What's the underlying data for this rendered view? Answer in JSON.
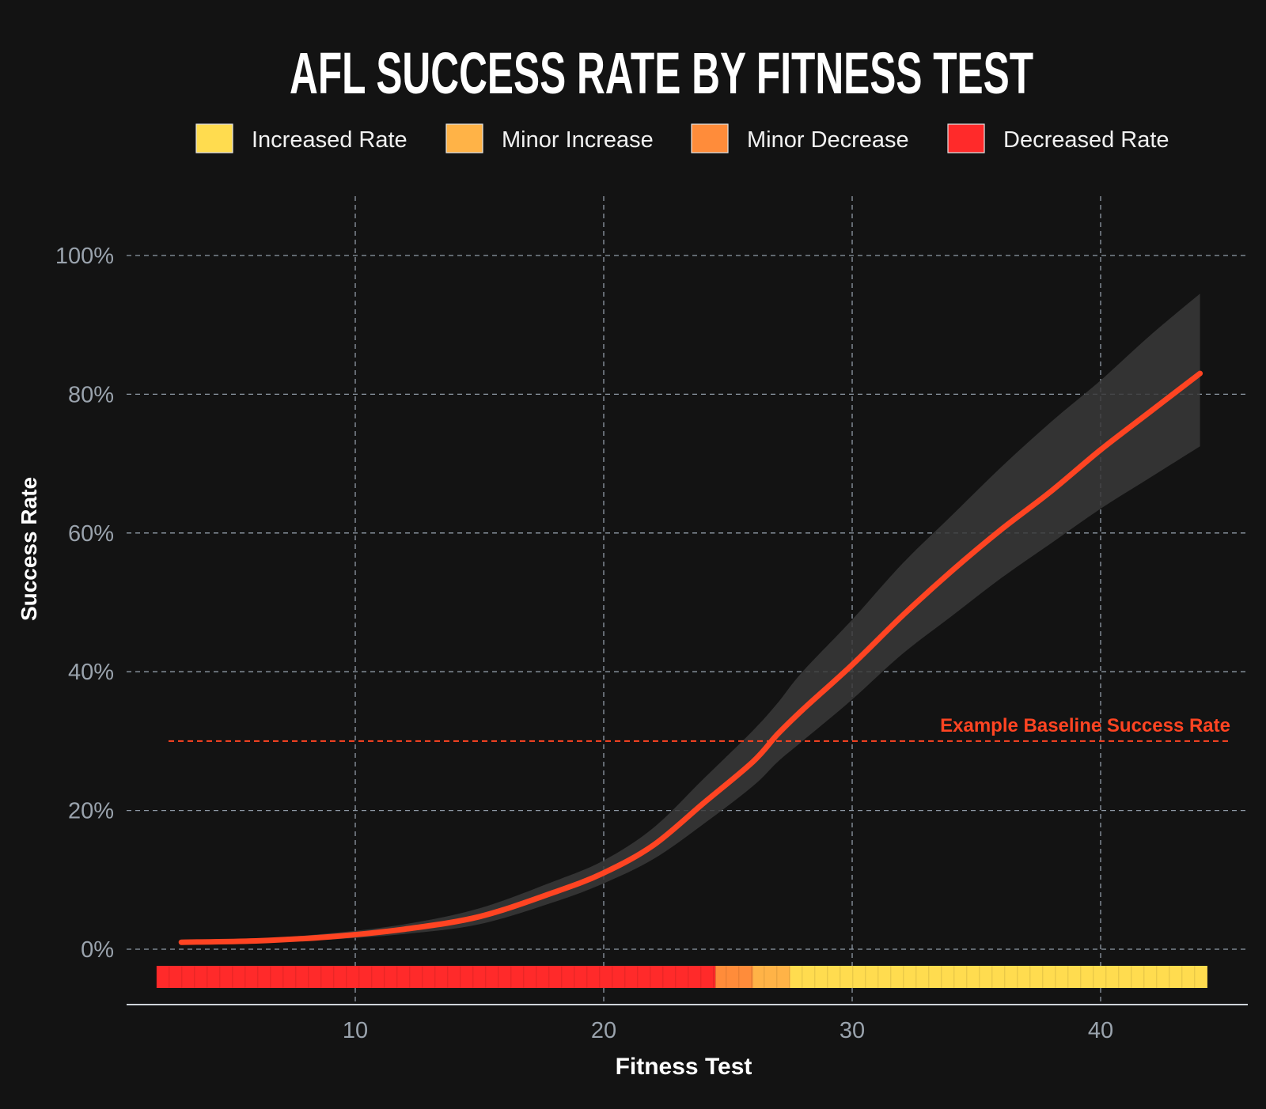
{
  "chart_data": {
    "type": "line",
    "title": "AFL SUCCESS RATE BY FITNESS TEST",
    "xlabel": "Fitness Test",
    "ylabel": "Success Rate",
    "xlim": [
      1,
      46
    ],
    "ylim": [
      -8,
      110
    ],
    "x_ticks": [
      10,
      20,
      30,
      40
    ],
    "x_tick_labels": [
      "10",
      "20",
      "30",
      "40"
    ],
    "y_ticks": [
      0,
      20,
      40,
      60,
      80,
      100
    ],
    "y_tick_labels": [
      "0%",
      "20%",
      "40%",
      "60%",
      "80%",
      "100%"
    ],
    "grid": true,
    "legend_placement": "top-center",
    "legend": [
      {
        "label": "Increased Rate",
        "color": "#ffdc4f"
      },
      {
        "label": "Minor Increase",
        "color": "#ffb347"
      },
      {
        "label": "Minor Decrease",
        "color": "#ff8c3a"
      },
      {
        "label": "Decreased Rate",
        "color": "#ff2a2a"
      }
    ],
    "series": [
      {
        "color": "#ff4422",
        "x": [
          3,
          6,
          9,
          12,
          15,
          18,
          20,
          22,
          24,
          26,
          27,
          28,
          30,
          32,
          34,
          36,
          38,
          40,
          42,
          44
        ],
        "y": [
          1.0,
          1.2,
          1.8,
          2.9,
          4.7,
          8.2,
          11.0,
          15.0,
          21.0,
          27.0,
          31.0,
          34.5,
          41.0,
          48.0,
          54.5,
          60.5,
          66.0,
          72.0,
          77.5,
          83.0
        ],
        "ci_lower": [
          0.8,
          1.0,
          1.4,
          2.2,
          3.6,
          6.8,
          9.5,
          13.0,
          18.0,
          23.5,
          27.0,
          30.0,
          36.0,
          42.5,
          48.0,
          53.5,
          58.5,
          63.5,
          68.0,
          72.5
        ],
        "ci_upper": [
          1.3,
          1.5,
          2.3,
          3.6,
          5.9,
          9.8,
          12.8,
          17.5,
          24.5,
          31.5,
          35.5,
          40.0,
          47.5,
          55.5,
          62.5,
          69.5,
          76.0,
          82.0,
          88.5,
          94.5
        ]
      }
    ],
    "baseline": {
      "y": 30,
      "label": "Example Baseline Success Rate",
      "color": "#ff4422"
    },
    "rug": {
      "x_start": 2,
      "x_end": 44.3,
      "segments": [
        {
          "from": 2,
          "to": 24.5,
          "category": "Decreased Rate",
          "color": "#ff2a2a"
        },
        {
          "from": 24.5,
          "to": 26.0,
          "category": "Minor Decrease",
          "color": "#ff8c3a"
        },
        {
          "from": 26.0,
          "to": 27.5,
          "category": "Minor Increase",
          "color": "#ffb347"
        },
        {
          "from": 27.5,
          "to": 44.3,
          "category": "Increased Rate",
          "color": "#ffdc4f"
        }
      ]
    }
  }
}
